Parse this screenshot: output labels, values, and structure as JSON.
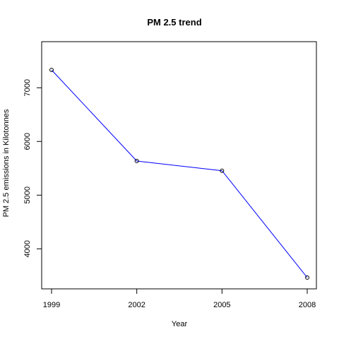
{
  "chart_data": {
    "type": "line",
    "title": "PM 2.5 trend",
    "xlabel": "Year",
    "ylabel": "PM 2.5 emissions in Kilotonnes",
    "x": [
      1999,
      2002,
      2005,
      2008
    ],
    "x_tick_labels": [
      "1999",
      "2002",
      "2005",
      "2008"
    ],
    "y_tick_values": [
      4000,
      5000,
      6000,
      7000
    ],
    "y_tick_labels": [
      "4000",
      "5000",
      "6000",
      "7000"
    ],
    "series": [
      {
        "values": [
          7332,
          5635,
          5455,
          3465
        ],
        "line_color": "#0000ff",
        "point_color": "#000000",
        "point_style": "open-circle"
      }
    ],
    "xlim": [
      1999,
      2008
    ],
    "ylim": [
      3465,
      7332
    ],
    "grid": false,
    "legend": "none",
    "frame": "box"
  }
}
